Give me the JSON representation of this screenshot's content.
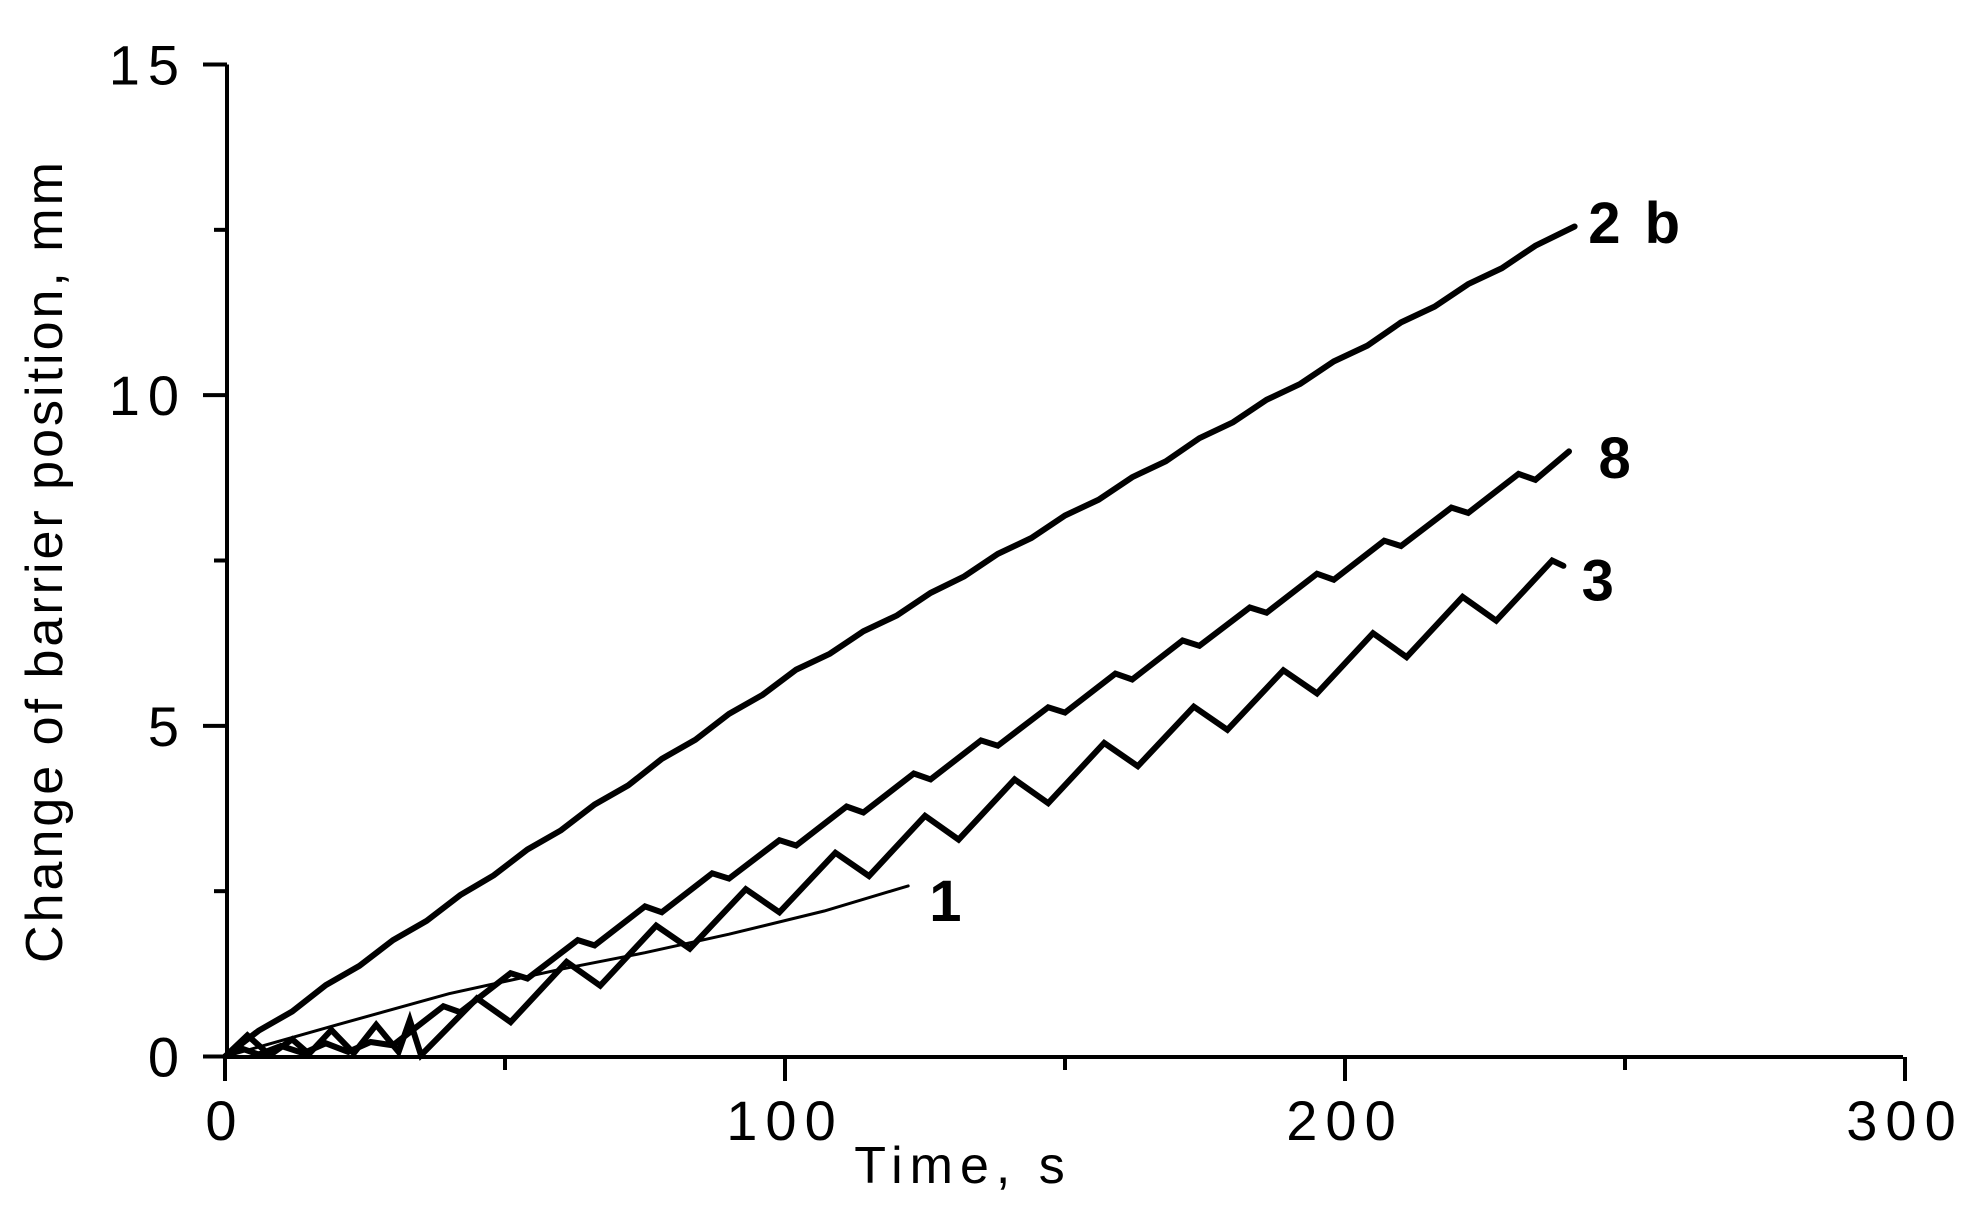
{
  "figure": {
    "background": "#ffffff",
    "ink_color": "#000000"
  },
  "chart_data": {
    "type": "line",
    "title": "",
    "xlabel": "Time, s",
    "ylabel": "Change of barrier position, mm",
    "xlim": [
      0,
      300
    ],
    "ylim": [
      0,
      15
    ],
    "grid": false,
    "legend_position": "inline-curve-labels",
    "x_major_ticks": [
      0,
      100,
      200,
      300
    ],
    "x_tick_labels": [
      "0",
      "100",
      "200",
      "300"
    ],
    "x_minor_ticks": [
      50,
      150,
      250
    ],
    "y_major_ticks": [
      0,
      5,
      10,
      15
    ],
    "y_tick_labels": [
      "0",
      "5",
      "10",
      "15"
    ],
    "y_minor_ticks": [
      2.5,
      7.5,
      12.5
    ],
    "series": [
      {
        "name": "2 b",
        "description": "steepest, nearly linear curve with tiny ripples",
        "stroke_width": 6,
        "label_pos": {
          "t": 252,
          "v": 12.6
        },
        "points": [
          [
            0,
            0
          ],
          [
            6,
            0.39
          ],
          [
            12,
            0.68
          ],
          [
            18,
            1.08
          ],
          [
            24,
            1.37
          ],
          [
            30,
            1.76
          ],
          [
            36,
            2.05
          ],
          [
            42,
            2.44
          ],
          [
            48,
            2.74
          ],
          [
            54,
            3.13
          ],
          [
            60,
            3.42
          ],
          [
            66,
            3.81
          ],
          [
            72,
            4.1
          ],
          [
            78,
            4.5
          ],
          [
            84,
            4.79
          ],
          [
            90,
            5.18
          ],
          [
            96,
            5.47
          ],
          [
            102,
            5.85
          ],
          [
            108,
            6.09
          ],
          [
            114,
            6.43
          ],
          [
            120,
            6.67
          ],
          [
            126,
            7.01
          ],
          [
            132,
            7.26
          ],
          [
            138,
            7.6
          ],
          [
            144,
            7.84
          ],
          [
            150,
            8.18
          ],
          [
            156,
            8.42
          ],
          [
            162,
            8.76
          ],
          [
            168,
            9.0
          ],
          [
            174,
            9.35
          ],
          [
            180,
            9.59
          ],
          [
            186,
            9.93
          ],
          [
            192,
            10.17
          ],
          [
            198,
            10.51
          ],
          [
            204,
            10.75
          ],
          [
            210,
            11.1
          ],
          [
            216,
            11.34
          ],
          [
            222,
            11.68
          ],
          [
            228,
            11.92
          ],
          [
            234,
            12.26
          ],
          [
            241,
            12.55
          ]
        ]
      },
      {
        "name": "8",
        "description": "middle curve with small stick-slip scallops",
        "stroke_width": 6,
        "label_pos": {
          "t": 248.5,
          "v": 9.05
        },
        "points": [
          [
            0,
            0
          ],
          [
            3,
            0.12
          ],
          [
            6,
            0.03
          ],
          [
            10,
            0.16
          ],
          [
            14,
            0.05
          ],
          [
            18,
            0.2
          ],
          [
            22,
            0.07
          ],
          [
            26,
            0.22
          ],
          [
            30,
            0.17
          ],
          [
            39,
            0.76
          ],
          [
            42,
            0.67
          ],
          [
            51,
            1.26
          ],
          [
            54,
            1.18
          ],
          [
            63,
            1.76
          ],
          [
            66,
            1.68
          ],
          [
            75,
            2.27
          ],
          [
            78,
            2.18
          ],
          [
            87,
            2.77
          ],
          [
            90,
            2.69
          ],
          [
            99,
            3.27
          ],
          [
            102,
            3.19
          ],
          [
            111,
            3.78
          ],
          [
            114,
            3.69
          ],
          [
            123,
            4.28
          ],
          [
            126,
            4.19
          ],
          [
            135,
            4.78
          ],
          [
            138,
            4.7
          ],
          [
            147,
            5.28
          ],
          [
            150,
            5.2
          ],
          [
            159,
            5.79
          ],
          [
            162,
            5.7
          ],
          [
            171,
            6.29
          ],
          [
            174,
            6.21
          ],
          [
            183,
            6.79
          ],
          [
            186,
            6.71
          ],
          [
            195,
            7.3
          ],
          [
            198,
            7.21
          ],
          [
            207,
            7.8
          ],
          [
            210,
            7.72
          ],
          [
            219,
            8.3
          ],
          [
            222,
            8.22
          ],
          [
            231,
            8.81
          ],
          [
            234,
            8.72
          ],
          [
            240,
            9.15
          ]
        ]
      },
      {
        "name": "3",
        "description": "lowest thick curve with large sawtooth stick-slip oscillations",
        "stroke_width": 6,
        "label_pos": {
          "t": 245.5,
          "v": 7.2
        },
        "points": [
          [
            0,
            0
          ],
          [
            4,
            0.32
          ],
          [
            8,
            0.02
          ],
          [
            12,
            0.26
          ],
          [
            15,
            0.04
          ],
          [
            19,
            0.4
          ],
          [
            23,
            0.05
          ],
          [
            27,
            0.48
          ],
          [
            31,
            0.07
          ],
          [
            33,
            0.55
          ],
          [
            35,
            0.02
          ],
          [
            45,
            0.88
          ],
          [
            51,
            0.52
          ],
          [
            61,
            1.43
          ],
          [
            67,
            1.07
          ],
          [
            77,
            1.98
          ],
          [
            83,
            1.63
          ],
          [
            93,
            2.53
          ],
          [
            99,
            2.18
          ],
          [
            109,
            3.08
          ],
          [
            115,
            2.73
          ],
          [
            125,
            3.64
          ],
          [
            131,
            3.28
          ],
          [
            141,
            4.19
          ],
          [
            147,
            3.83
          ],
          [
            157,
            4.74
          ],
          [
            163,
            4.39
          ],
          [
            173,
            5.29
          ],
          [
            179,
            4.94
          ],
          [
            189,
            5.84
          ],
          [
            195,
            5.49
          ],
          [
            205,
            6.4
          ],
          [
            211,
            6.04
          ],
          [
            221,
            6.95
          ],
          [
            227,
            6.59
          ],
          [
            237,
            7.5
          ],
          [
            239,
            7.42
          ]
        ]
      },
      {
        "name": "1",
        "description": "thin straight reference line ending near t=122 s",
        "stroke_width": 3,
        "label_pos": {
          "t": 129,
          "v": 2.35
        },
        "points": [
          [
            0,
            0
          ],
          [
            20,
            0.48
          ],
          [
            40,
            0.95
          ],
          [
            60,
            1.32
          ],
          [
            75,
            1.57
          ],
          [
            90,
            1.85
          ],
          [
            107,
            2.2
          ],
          [
            122,
            2.58
          ]
        ]
      }
    ]
  }
}
